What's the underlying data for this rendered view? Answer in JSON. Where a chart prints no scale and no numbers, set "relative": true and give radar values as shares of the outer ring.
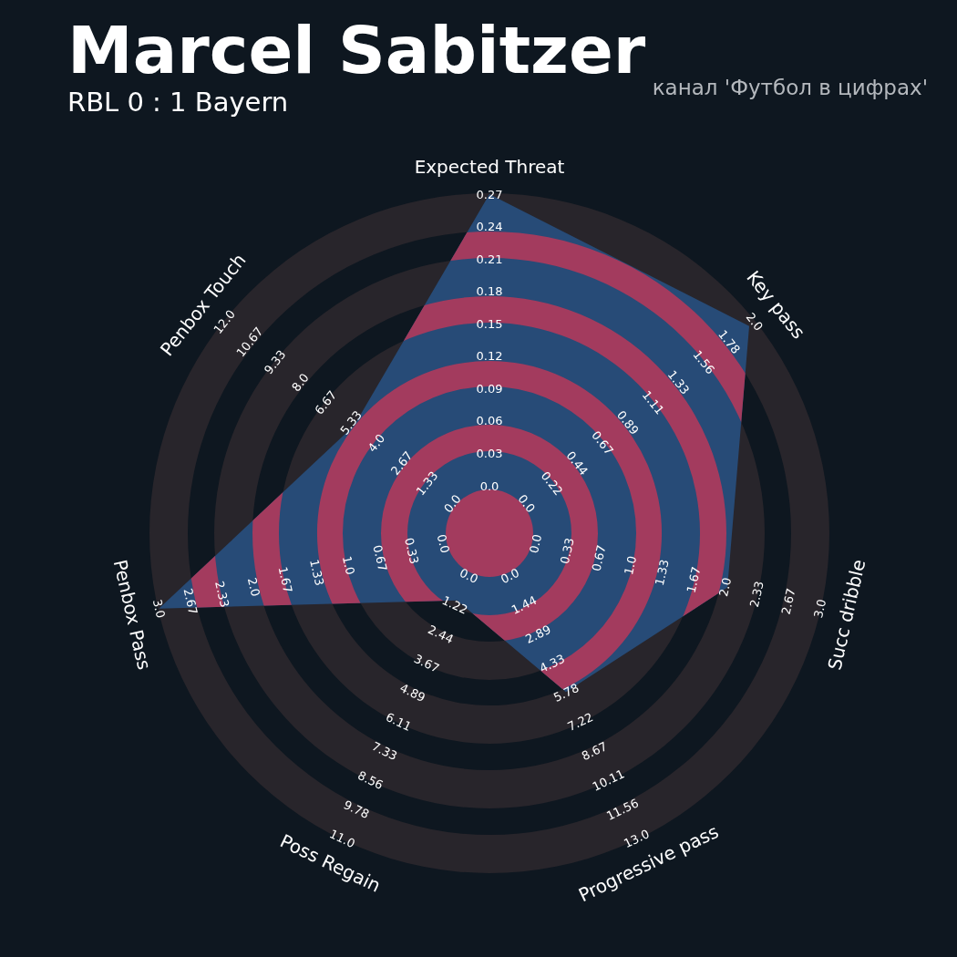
{
  "chart_data": {
    "type": "radar",
    "title": "Marcel Sabitzer",
    "subtitle": "RBL 0 : 1 Bayern",
    "relative": true,
    "grid": true,
    "categories": [
      "Expected Threat",
      "Key pass",
      "Succ dribble",
      "Progressive pass",
      "Poss Regain",
      "Penbox Pass",
      "Penbox Touch"
    ],
    "series": [
      {
        "color": "#274b77",
        "values": [
          1,
          0.98,
          0.72,
          0.52,
          0.22,
          1,
          0.51
        ]
      }
    ],
    "annotations": [
      "канал 'Футбол в цифрах'",
      {
        "text": "0.0",
        "x": "Expected Threat"
      },
      {
        "text": "0.03",
        "x": "Expected Threat"
      },
      {
        "text": "0.06",
        "x": "Expected Threat"
      },
      {
        "text": "0.09",
        "x": "Expected Threat"
      },
      {
        "text": "0.12",
        "x": "Expected Threat"
      },
      {
        "text": "0.15",
        "x": "Expected Threat"
      },
      {
        "text": "0.18",
        "x": "Expected Threat"
      },
      {
        "text": "0.21",
        "x": "Expected Threat"
      },
      {
        "text": "0.24",
        "x": "Expected Threat"
      },
      {
        "text": "0.27",
        "x": "Expected Threat"
      },
      {
        "text": "0.0",
        "x": "Key pass"
      },
      {
        "text": "0.22",
        "x": "Key pass"
      },
      {
        "text": "0.44",
        "x": "Key pass"
      },
      {
        "text": "0.67",
        "x": "Key pass"
      },
      {
        "text": "0.89",
        "x": "Key pass"
      },
      {
        "text": "1.11",
        "x": "Key pass"
      },
      {
        "text": "1.33",
        "x": "Key pass"
      },
      {
        "text": "1.56",
        "x": "Key pass"
      },
      {
        "text": "1.78",
        "x": "Key pass"
      },
      {
        "text": "2.0",
        "x": "Key pass"
      },
      {
        "text": "0.0",
        "x": "Succ dribble"
      },
      {
        "text": "0.33",
        "x": "Succ dribble"
      },
      {
        "text": "0.67",
        "x": "Succ dribble"
      },
      {
        "text": "1.0",
        "x": "Succ dribble"
      },
      {
        "text": "1.33",
        "x": "Succ dribble"
      },
      {
        "text": "1.67",
        "x": "Succ dribble"
      },
      {
        "text": "2.0",
        "x": "Succ dribble"
      },
      {
        "text": "2.33",
        "x": "Succ dribble"
      },
      {
        "text": "2.67",
        "x": "Succ dribble"
      },
      {
        "text": "3.0",
        "x": "Succ dribble"
      },
      {
        "text": "0.0",
        "x": "Progressive pass"
      },
      {
        "text": "1.44",
        "x": "Progressive pass"
      },
      {
        "text": "2.89",
        "x": "Progressive pass"
      },
      {
        "text": "4.33",
        "x": "Progressive pass"
      },
      {
        "text": "5.78",
        "x": "Progressive pass"
      },
      {
        "text": "7.22",
        "x": "Progressive pass"
      },
      {
        "text": "8.67",
        "x": "Progressive pass"
      },
      {
        "text": "10.11",
        "x": "Progressive pass"
      },
      {
        "text": "11.56",
        "x": "Progressive pass"
      },
      {
        "text": "13.0",
        "x": "Progressive pass"
      },
      {
        "text": "0.0",
        "x": "Poss Regain"
      },
      {
        "text": "1.22",
        "x": "Poss Regain"
      },
      {
        "text": "2.44",
        "x": "Poss Regain"
      },
      {
        "text": "3.67",
        "x": "Poss Regain"
      },
      {
        "text": "4.89",
        "x": "Poss Regain"
      },
      {
        "text": "6.11",
        "x": "Poss Regain"
      },
      {
        "text": "7.33",
        "x": "Poss Regain"
      },
      {
        "text": "8.56",
        "x": "Poss Regain"
      },
      {
        "text": "9.78",
        "x": "Poss Regain"
      },
      {
        "text": "11.0",
        "x": "Poss Regain"
      },
      {
        "text": "0.0",
        "x": "Penbox Pass"
      },
      {
        "text": "0.33",
        "x": "Penbox Pass"
      },
      {
        "text": "0.67",
        "x": "Penbox Pass"
      },
      {
        "text": "1.0",
        "x": "Penbox Pass"
      },
      {
        "text": "1.33",
        "x": "Penbox Pass"
      },
      {
        "text": "1.67",
        "x": "Penbox Pass"
      },
      {
        "text": "2.0",
        "x": "Penbox Pass"
      },
      {
        "text": "2.33",
        "x": "Penbox Pass"
      },
      {
        "text": "2.67",
        "x": "Penbox Pass"
      },
      {
        "text": "3.0",
        "x": "Penbox Pass"
      },
      {
        "text": "0.0",
        "x": "Penbox Touch"
      },
      {
        "text": "1.33",
        "x": "Penbox Touch"
      },
      {
        "text": "2.67",
        "x": "Penbox Touch"
      },
      {
        "text": "4.0",
        "x": "Penbox Touch"
      },
      {
        "text": "5.33",
        "x": "Penbox Touch"
      },
      {
        "text": "6.67",
        "x": "Penbox Touch"
      },
      {
        "text": "8.0",
        "x": "Penbox Touch"
      },
      {
        "text": "9.33",
        "x": "Penbox Touch"
      },
      {
        "text": "10.67",
        "x": "Penbox Touch"
      },
      {
        "text": "12.0",
        "x": "Penbox Touch"
      }
    ]
  }
}
